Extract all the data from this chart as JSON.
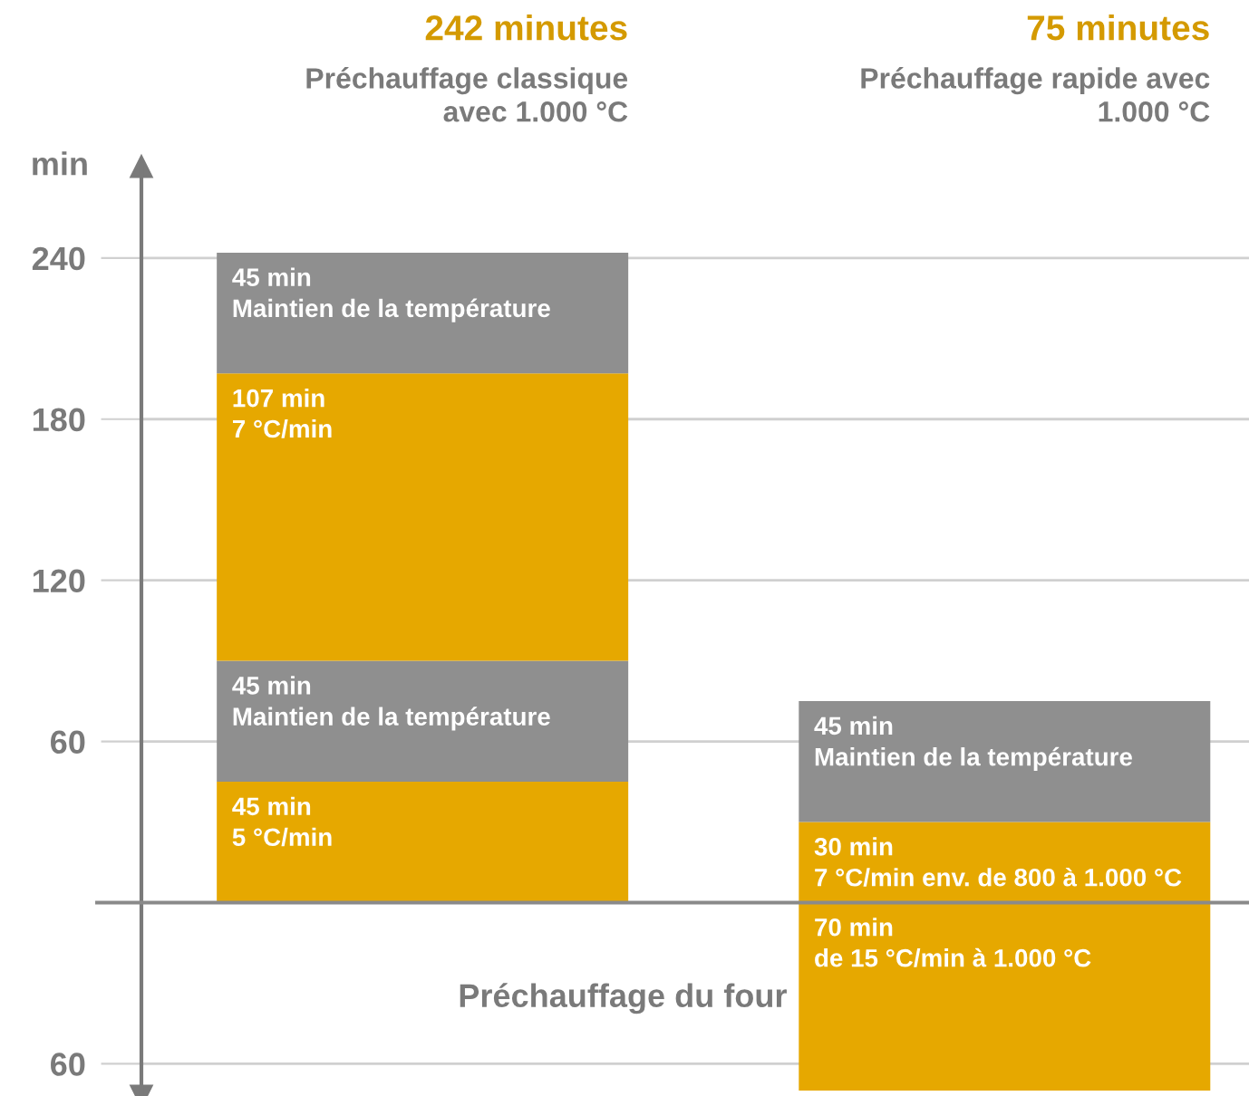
{
  "chart_data": {
    "type": "bar",
    "stacked": true,
    "ylabel": "min",
    "categories": [
      null,
      null
    ],
    "series": [
      {
        "colors": [
          "#e6a800",
          "#e6a800"
        ],
        "values": [
          45,
          -70
        ],
        "value_labels": [
          "45 min\n5 °C/min",
          null
        ]
      },
      {
        "colors": [
          "#8f8f8f",
          "#e6a800"
        ],
        "values": [
          45,
          30
        ],
        "value_labels": [
          "45 min\nMaintien de la température",
          "30 min\n7 °C/min env. de 800 à 1.000 °C"
        ]
      },
      {
        "colors": [
          "#e6a800",
          "#8f8f8f"
        ],
        "values": [
          107,
          45
        ],
        "value_labels": [
          "107 min\n7 °C/min",
          "45 min\nMaintien de la température"
        ]
      },
      {
        "colors": [
          "#8f8f8f",
          null
        ],
        "values": [
          45,
          null
        ],
        "value_labels": [
          "45 min\nMaintien de la température",
          null
        ]
      }
    ],
    "ylim": [
      -72,
      274
    ],
    "yticks": [
      240,
      180,
      120,
      60,
      {
        "value": 0,
        "label": null
      },
      {
        "value": -60,
        "label": "60"
      }
    ],
    "grid": "y",
    "ref_lines": [
      {
        "axis": "y",
        "value": 0,
        "color": "#8a8a8a"
      }
    ],
    "annotations": [
      "242 minutes",
      "Préchauffage classique\navec 1.000 °C",
      "75 minutes",
      "Préchauffage rapide avec\n1.000 °C",
      "Préchauffage du four",
      "70 min\nde 15 °C/min à 1.000 °C"
    ]
  }
}
